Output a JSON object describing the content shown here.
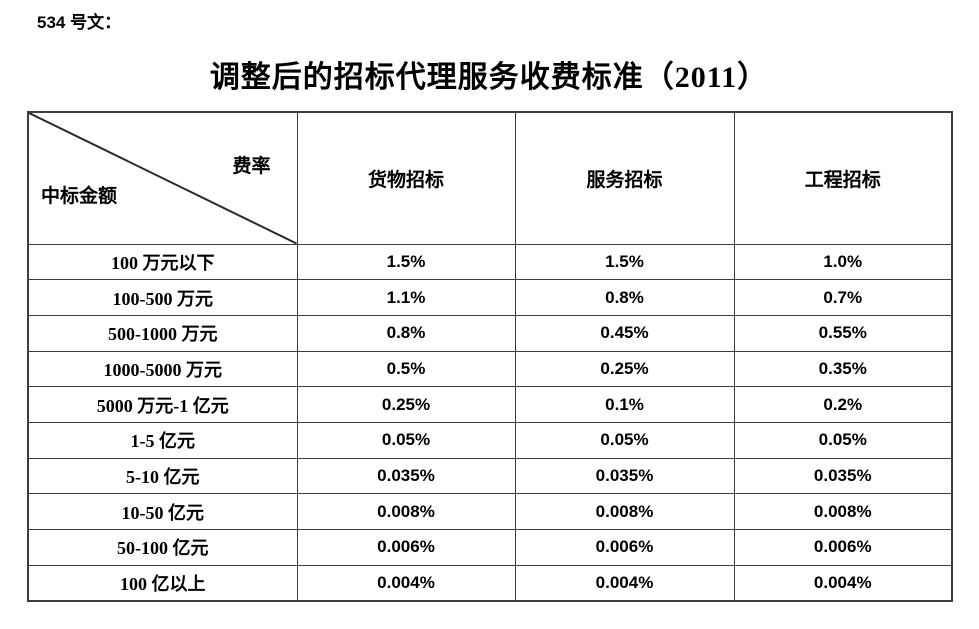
{
  "page": {
    "doc_label": "534 号文：",
    "title": "调整后的招标代理服务收费标准（2011）"
  },
  "table": {
    "corner": {
      "top_right": "费率",
      "bottom_left": "中标金额"
    },
    "columns": [
      "货物招标",
      "服务招标",
      "工程招标"
    ],
    "rows": [
      {
        "label": "100 万元以下",
        "values": [
          "1.5%",
          "1.5%",
          "1.0%"
        ]
      },
      {
        "label": "100-500 万元",
        "values": [
          "1.1%",
          "0.8%",
          "0.7%"
        ]
      },
      {
        "label": "500-1000 万元",
        "values": [
          "0.8%",
          "0.45%",
          "0.55%"
        ]
      },
      {
        "label": "1000-5000 万元",
        "values": [
          "0.5%",
          "0.25%",
          "0.35%"
        ]
      },
      {
        "label": "5000 万元-1 亿元",
        "values": [
          "0.25%",
          "0.1%",
          "0.2%"
        ]
      },
      {
        "label": "1-5 亿元",
        "values": [
          "0.05%",
          "0.05%",
          "0.05%"
        ]
      },
      {
        "label": "5-10 亿元",
        "values": [
          "0.035%",
          "0.035%",
          "0.035%"
        ]
      },
      {
        "label": "10-50 亿元",
        "values": [
          "0.008%",
          "0.008%",
          "0.008%"
        ]
      },
      {
        "label": "50-100 亿元",
        "values": [
          "0.006%",
          "0.006%",
          "0.006%"
        ]
      },
      {
        "label": "100 亿以上",
        "values": [
          "0.004%",
          "0.004%",
          "0.004%"
        ]
      }
    ]
  }
}
